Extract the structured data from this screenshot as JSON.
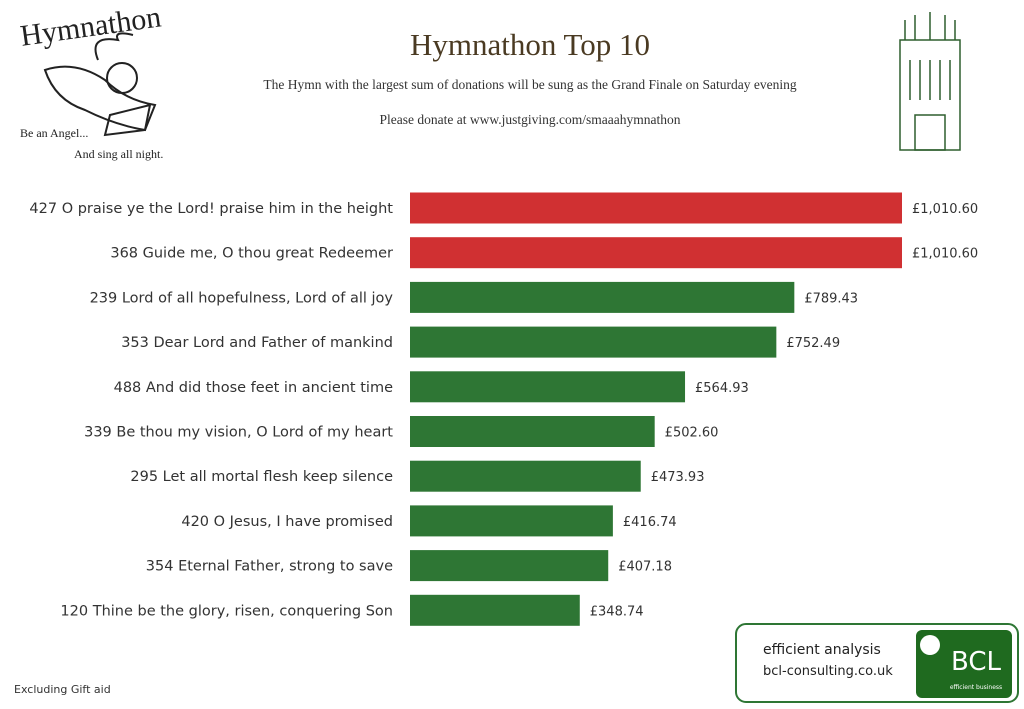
{
  "header": {
    "logo_title": "Hymnathon",
    "logo_line1": "Be an Angel...",
    "logo_line2": "And sing all night."
  },
  "chart_data": {
    "type": "bar",
    "orientation": "horizontal",
    "title": "Hymnathon Top 10",
    "subtitle": "The Hymn with the largest sum of donations will be sung as the Grand Finale on Saturday evening",
    "annotation": "Please donate at www.justgiving.com/smaaahymnathon",
    "categories": [
      "427 O praise ye the Lord! praise him in the height",
      "368 Guide me, O thou great Redeemer",
      "239 Lord of all hopefulness, Lord of all joy",
      "353 Dear Lord and Father of mankind",
      "488 And did those feet in ancient time",
      "339 Be thou my vision, O Lord of my heart",
      "295 Let all mortal flesh keep silence",
      "420 O Jesus, I have promised",
      "354 Eternal Father, strong to save",
      "120 Thine be the glory, risen, conquering Son"
    ],
    "values": [
      1010.6,
      1010.6,
      789.43,
      752.49,
      564.93,
      502.6,
      473.93,
      416.74,
      407.18,
      348.74
    ],
    "value_labels": [
      "£1,010.60",
      "£1,010.60",
      "£789.43",
      "£752.49",
      "£564.93",
      "£502.60",
      "£473.93",
      "£416.74",
      "£407.18",
      "£348.74"
    ],
    "colors": [
      "#d03032",
      "#d03032",
      "#2e7634",
      "#2e7634",
      "#2e7634",
      "#2e7634",
      "#2e7634",
      "#2e7634",
      "#2e7634",
      "#2e7634"
    ],
    "note": "Excluding Gift aid"
  },
  "footer": {
    "line1": "efficient analysis",
    "line2": "bcl-consulting.co.uk",
    "brand": "BCL",
    "brand_tag": "efficient business"
  }
}
